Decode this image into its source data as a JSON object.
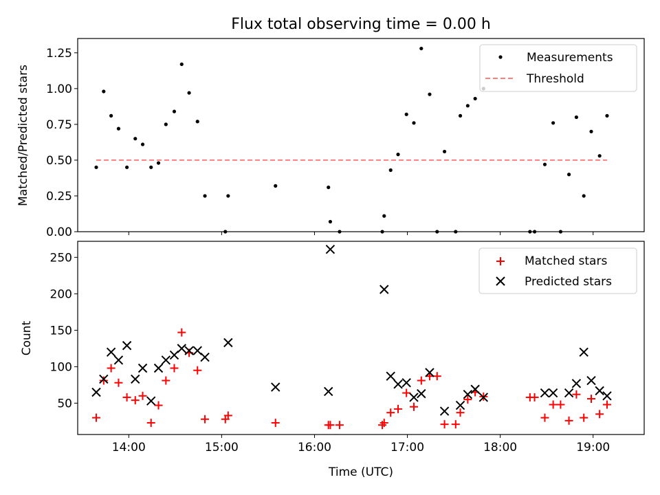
{
  "chart_data": [
    {
      "type": "scatter",
      "title": "Flux total observing time = 0.00 h",
      "xlabel": "",
      "ylabel": "Matched/Predicted stars",
      "ylim": [
        0,
        1.35
      ],
      "yticks": [
        0.0,
        0.25,
        0.5,
        0.75,
        1.0,
        1.25
      ],
      "ytick_labels": [
        "0.00",
        "0.25",
        "0.50",
        "0.75",
        "1.00",
        "1.25"
      ],
      "xlim_hours": [
        13.45,
        19.55
      ],
      "xticks_hours": [
        14,
        15,
        16,
        17,
        18,
        19
      ],
      "legend": {
        "position": "top-right",
        "entries": [
          "Measurements",
          "Threshold"
        ]
      },
      "colors": {
        "measurements": "#000000",
        "threshold": "#ff7f7f"
      },
      "threshold": {
        "name": "Threshold",
        "y": 0.5,
        "x_range_hours": [
          13.65,
          19.15
        ]
      },
      "series": [
        {
          "name": "Measurements",
          "points": [
            [
              13.65,
              0.45
            ],
            [
              13.73,
              0.98
            ],
            [
              13.81,
              0.81
            ],
            [
              13.89,
              0.72
            ],
            [
              13.98,
              0.45
            ],
            [
              14.07,
              0.65
            ],
            [
              14.15,
              0.61
            ],
            [
              14.24,
              0.45
            ],
            [
              14.32,
              0.48
            ],
            [
              14.4,
              0.75
            ],
            [
              14.49,
              0.84
            ],
            [
              14.57,
              1.17
            ],
            [
              14.65,
              0.97
            ],
            [
              14.74,
              0.77
            ],
            [
              14.82,
              0.25
            ],
            [
              15.04,
              0.0
            ],
            [
              15.07,
              0.25
            ],
            [
              15.58,
              0.32
            ],
            [
              16.15,
              0.31
            ],
            [
              16.17,
              0.07
            ],
            [
              16.27,
              0.0
            ],
            [
              16.73,
              0.0
            ],
            [
              16.75,
              0.11
            ],
            [
              16.82,
              0.43
            ],
            [
              16.9,
              0.54
            ],
            [
              16.99,
              0.82
            ],
            [
              17.07,
              0.76
            ],
            [
              17.15,
              1.28
            ],
            [
              17.24,
              0.96
            ],
            [
              17.32,
              0.0
            ],
            [
              17.4,
              0.56
            ],
            [
              17.52,
              0.0
            ],
            [
              17.57,
              0.81
            ],
            [
              17.65,
              0.88
            ],
            [
              17.73,
              0.93
            ],
            [
              17.82,
              1.0
            ],
            [
              18.32,
              0.0
            ],
            [
              18.37,
              0.0
            ],
            [
              18.48,
              0.47
            ],
            [
              18.57,
              0.76
            ],
            [
              18.65,
              0.0
            ],
            [
              18.74,
              0.4
            ],
            [
              18.82,
              0.8
            ],
            [
              18.9,
              0.25
            ],
            [
              18.98,
              0.7
            ],
            [
              19.07,
              0.53
            ],
            [
              19.15,
              0.81
            ]
          ]
        }
      ]
    },
    {
      "type": "scatter",
      "title": "",
      "xlabel": "Time (UTC)",
      "ylabel": "Count",
      "ylim": [
        7,
        272
      ],
      "yticks": [
        50,
        100,
        150,
        200,
        250
      ],
      "ytick_labels": [
        "50",
        "100",
        "150",
        "200",
        "250"
      ],
      "xlim_hours": [
        13.45,
        19.55
      ],
      "xticks_hours": [
        14,
        15,
        16,
        17,
        18,
        19
      ],
      "xtick_labels": [
        "14:00",
        "15:00",
        "16:00",
        "17:00",
        "18:00",
        "19:00"
      ],
      "legend": {
        "position": "top-right",
        "entries": [
          "Matched stars",
          "Predicted stars"
        ]
      },
      "colors": {
        "matched": "#ff0000",
        "predicted": "#000000"
      },
      "series": [
        {
          "name": "Matched stars",
          "marker": "+",
          "points": [
            [
              13.65,
              30
            ],
            [
              13.73,
              81
            ],
            [
              13.81,
              98
            ],
            [
              13.89,
              78
            ],
            [
              13.98,
              58
            ],
            [
              14.07,
              54
            ],
            [
              14.15,
              60
            ],
            [
              14.24,
              23
            ],
            [
              14.32,
              47
            ],
            [
              14.4,
              81
            ],
            [
              14.49,
              98
            ],
            [
              14.57,
              147
            ],
            [
              14.65,
              119
            ],
            [
              14.74,
              95
            ],
            [
              14.82,
              28
            ],
            [
              15.04,
              28
            ],
            [
              15.07,
              33
            ],
            [
              15.58,
              23
            ],
            [
              16.15,
              20
            ],
            [
              16.17,
              20
            ],
            [
              16.27,
              20
            ],
            [
              16.73,
              20
            ],
            [
              16.75,
              23
            ],
            [
              16.82,
              37
            ],
            [
              16.9,
              42
            ],
            [
              16.99,
              64
            ],
            [
              17.07,
              45
            ],
            [
              17.15,
              81
            ],
            [
              17.24,
              87
            ],
            [
              17.32,
              87
            ],
            [
              17.4,
              21
            ],
            [
              17.52,
              21
            ],
            [
              17.57,
              37
            ],
            [
              17.65,
              55
            ],
            [
              17.73,
              65
            ],
            [
              17.82,
              59
            ],
            [
              18.32,
              58
            ],
            [
              18.37,
              58
            ],
            [
              18.48,
              30
            ],
            [
              18.57,
              48
            ],
            [
              18.65,
              48
            ],
            [
              18.74,
              26
            ],
            [
              18.82,
              62
            ],
            [
              18.9,
              30
            ],
            [
              18.98,
              56
            ],
            [
              19.07,
              35
            ],
            [
              19.15,
              48
            ]
          ]
        },
        {
          "name": "Predicted stars",
          "marker": "x",
          "points": [
            [
              13.65,
              65
            ],
            [
              13.73,
              83
            ],
            [
              13.81,
              120
            ],
            [
              13.89,
              109
            ],
            [
              13.98,
              129
            ],
            [
              14.07,
              83
            ],
            [
              14.15,
              98
            ],
            [
              14.24,
              53
            ],
            [
              14.32,
              98
            ],
            [
              14.4,
              109
            ],
            [
              14.49,
              116
            ],
            [
              14.57,
              125
            ],
            [
              14.65,
              122
            ],
            [
              14.74,
              122
            ],
            [
              14.82,
              113
            ],
            [
              15.07,
              133
            ],
            [
              15.58,
              72
            ],
            [
              16.15,
              66
            ],
            [
              16.17,
              261
            ],
            [
              16.75,
              206
            ],
            [
              16.82,
              87
            ],
            [
              16.9,
              76
            ],
            [
              16.99,
              78
            ],
            [
              17.07,
              58
            ],
            [
              17.15,
              63
            ],
            [
              17.24,
              92
            ],
            [
              17.4,
              39
            ],
            [
              17.57,
              47
            ],
            [
              17.65,
              62
            ],
            [
              17.73,
              69
            ],
            [
              17.82,
              58
            ],
            [
              18.48,
              64
            ],
            [
              18.57,
              64
            ],
            [
              18.74,
              64
            ],
            [
              18.82,
              77
            ],
            [
              18.9,
              120
            ],
            [
              18.98,
              81
            ],
            [
              19.07,
              67
            ],
            [
              19.15,
              60
            ]
          ]
        }
      ]
    }
  ]
}
